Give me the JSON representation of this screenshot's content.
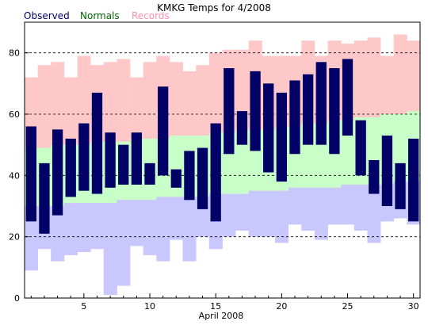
{
  "chart_data": {
    "type": "bar",
    "title": "KMKG Temps for 4/2008",
    "xlabel": "April 2008",
    "ylabel": "",
    "xlim": [
      0.5,
      30.5
    ],
    "ylim": [
      0,
      90
    ],
    "x_ticks": [
      5,
      10,
      15,
      20,
      25,
      30
    ],
    "y_ticks": [
      0,
      20,
      40,
      60,
      80
    ],
    "grid": "horizontal dashed at 20, 40, 60, 80",
    "legend": "top-left",
    "days": [
      1,
      2,
      3,
      4,
      5,
      6,
      7,
      8,
      9,
      10,
      11,
      12,
      13,
      14,
      15,
      16,
      17,
      18,
      19,
      20,
      21,
      22,
      23,
      24,
      25,
      26,
      27,
      28,
      29,
      30
    ],
    "series": [
      {
        "name": "Records",
        "color": "#ffc8c8",
        "high": [
          72,
          76,
          77,
          72,
          79,
          76,
          77,
          78,
          72,
          77,
          79,
          77,
          74,
          76,
          80,
          81,
          81,
          84,
          79,
          79,
          79,
          84,
          79,
          84,
          83,
          84,
          85,
          79,
          86,
          84
        ],
        "low": [
          9,
          16,
          12,
          14,
          15,
          16,
          1,
          4,
          17,
          14,
          12,
          19,
          12,
          20,
          16,
          20,
          22,
          20,
          20,
          18,
          24,
          22,
          19,
          24,
          24,
          22,
          18,
          25,
          26,
          24
        ]
      },
      {
        "name": "Normals",
        "color": "#c8ffc8",
        "high": [
          49,
          49,
          50,
          50,
          50,
          51,
          51,
          51,
          52,
          52,
          52,
          53,
          53,
          53,
          54,
          54,
          55,
          55,
          55,
          56,
          56,
          57,
          57,
          58,
          58,
          59,
          59,
          60,
          60,
          61
        ],
        "low": [
          30,
          30,
          30,
          31,
          31,
          31,
          31,
          32,
          32,
          32,
          33,
          33,
          33,
          33,
          34,
          34,
          34,
          35,
          35,
          35,
          36,
          36,
          36,
          36,
          37,
          37,
          37,
          37,
          38,
          38
        ]
      },
      {
        "name": "Observed",
        "color": "#000066",
        "high": [
          56,
          44,
          55,
          52,
          57,
          67,
          54,
          50,
          54,
          44,
          69,
          42,
          48,
          49,
          57,
          75,
          61,
          74,
          70,
          67,
          71,
          73,
          77,
          75,
          78,
          58,
          45,
          53,
          44,
          52
        ],
        "low": [
          25,
          21,
          27,
          33,
          35,
          34,
          36,
          37,
          37,
          37,
          40,
          36,
          32,
          29,
          25,
          47,
          50,
          48,
          41,
          38,
          47,
          50,
          50,
          47,
          53,
          40,
          34,
          30,
          29,
          25
        ]
      }
    ]
  }
}
